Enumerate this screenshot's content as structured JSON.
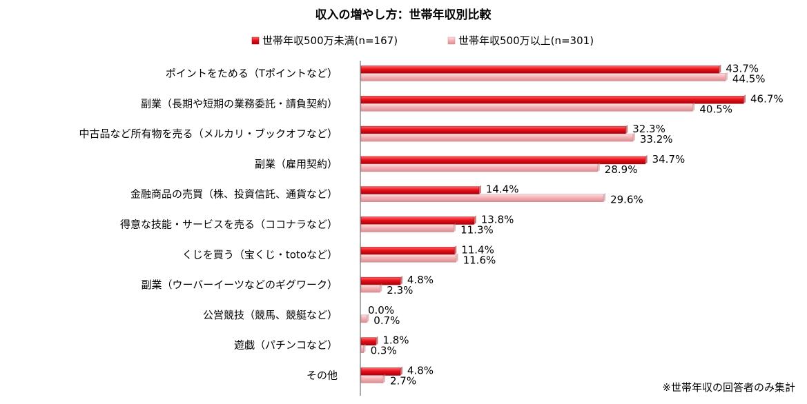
{
  "chart_data": {
    "type": "bar",
    "orientation": "horizontal",
    "title": "収入の増やし方：世帯年収別比較",
    "unit_suffix": "%",
    "xlim": [
      0,
      50
    ],
    "grid": false,
    "legend_position": "top",
    "categories": [
      "ポイントをためる（Tポイントなど）",
      "副業（長期や短期の業務委託・請負契約）",
      "中古品など所有物を売る（メルカリ・ブックオフなど）",
      "副業（雇用契約）",
      "金融商品の売買（株、投資信託、通貨など）",
      "得意な技能・サービスを売る（ココナラなど）",
      "くじを買う（宝くじ・totoなど）",
      "副業（ウーバーイーツなどのギグワーク）",
      "公営競技（競馬、競艇など）",
      "遊戯（パチンコなど）",
      "その他"
    ],
    "series": [
      {
        "name": "世帯年収500万未満(n=167)",
        "color": "#e8101c",
        "values": [
          43.7,
          46.7,
          32.3,
          34.7,
          14.4,
          13.8,
          11.4,
          4.8,
          0.0,
          1.8,
          4.8
        ],
        "labels": [
          "43.7%",
          "46.7%",
          "32.3%",
          "34.7%",
          "14.4%",
          "13.8%",
          "11.4%",
          "4.8%",
          "0.0%",
          "1.8%",
          "4.8%"
        ]
      },
      {
        "name": "世帯年収500万以上(n=301)",
        "color": "#f2a7aa",
        "values": [
          44.5,
          40.5,
          33.2,
          28.9,
          29.6,
          11.3,
          11.6,
          2.3,
          0.7,
          0.3,
          2.7
        ],
        "labels": [
          "44.5%",
          "40.5%",
          "33.2%",
          "28.9%",
          "29.6%",
          "11.3%",
          "11.6%",
          "2.3%",
          "0.7%",
          "0.3%",
          "2.7%"
        ]
      }
    ],
    "footnote": "※世帯年収の回答者のみ集計"
  }
}
